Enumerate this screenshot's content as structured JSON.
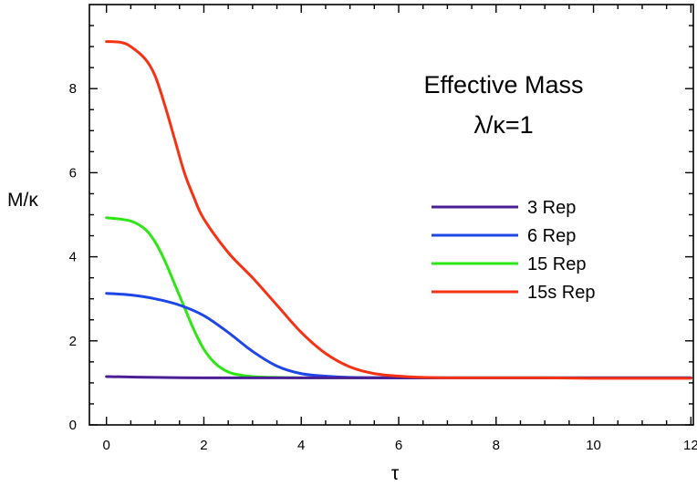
{
  "chart_data": {
    "type": "line",
    "title": "Effective Mass",
    "subtitle": "λ/κ=1",
    "xlabel": "τ",
    "ylabel": "M/κ",
    "xlim": [
      -0.35,
      12.05
    ],
    "ylim": [
      0,
      10
    ],
    "xticks": [
      "0",
      "2",
      "4",
      "6",
      "8",
      "10",
      "12"
    ],
    "yticks": [
      "0",
      "2",
      "4",
      "6",
      "8"
    ],
    "grid": false,
    "legend": "right-middle",
    "series": [
      {
        "name": "3 Rep",
        "color": "#4B1E96",
        "x": [
          0,
          1,
          2,
          3,
          4,
          5,
          6,
          7,
          8,
          9,
          10,
          11,
          12
        ],
        "y": [
          1.15,
          1.13,
          1.12,
          1.12,
          1.12,
          1.12,
          1.12,
          1.12,
          1.12,
          1.12,
          1.12,
          1.12,
          1.12
        ]
      },
      {
        "name": "6 Rep",
        "color": "#1E46E6",
        "x": [
          0,
          0.5,
          1.0,
          1.5,
          2.0,
          2.5,
          3.0,
          3.5,
          4.0,
          4.5,
          5.0,
          6.0,
          7.0,
          8.0,
          10.0,
          12.0
        ],
        "y": [
          3.13,
          3.09,
          3.0,
          2.85,
          2.6,
          2.2,
          1.75,
          1.4,
          1.22,
          1.16,
          1.13,
          1.12,
          1.12,
          1.12,
          1.12,
          1.12
        ]
      },
      {
        "name": "15 Rep",
        "color": "#2EE616",
        "x": [
          0,
          0.5,
          0.8,
          1.0,
          1.2,
          1.4,
          1.6,
          1.8,
          2.0,
          2.2,
          2.4,
          2.6,
          3.0,
          3.5,
          4.0,
          5.0,
          6.0,
          8.0,
          12.0
        ],
        "y": [
          4.93,
          4.85,
          4.65,
          4.35,
          3.9,
          3.35,
          2.8,
          2.25,
          1.8,
          1.5,
          1.32,
          1.22,
          1.15,
          1.13,
          1.12,
          1.12,
          1.12,
          1.12,
          1.12
        ]
      },
      {
        "name": "15s Rep",
        "color": "#F53214",
        "x": [
          0,
          0.3,
          0.5,
          0.8,
          1.0,
          1.2,
          1.4,
          1.6,
          1.8,
          2.0,
          2.5,
          3.0,
          3.5,
          4.0,
          4.5,
          5.0,
          5.5,
          6.0,
          6.5,
          7.0,
          8.0,
          9.0,
          10.0,
          11.0,
          12.0
        ],
        "y": [
          9.12,
          9.1,
          9.0,
          8.7,
          8.3,
          7.6,
          6.8,
          6.0,
          5.4,
          4.9,
          4.1,
          3.5,
          2.85,
          2.2,
          1.7,
          1.38,
          1.22,
          1.16,
          1.13,
          1.12,
          1.12,
          1.12,
          1.11,
          1.11,
          1.11
        ]
      }
    ]
  }
}
